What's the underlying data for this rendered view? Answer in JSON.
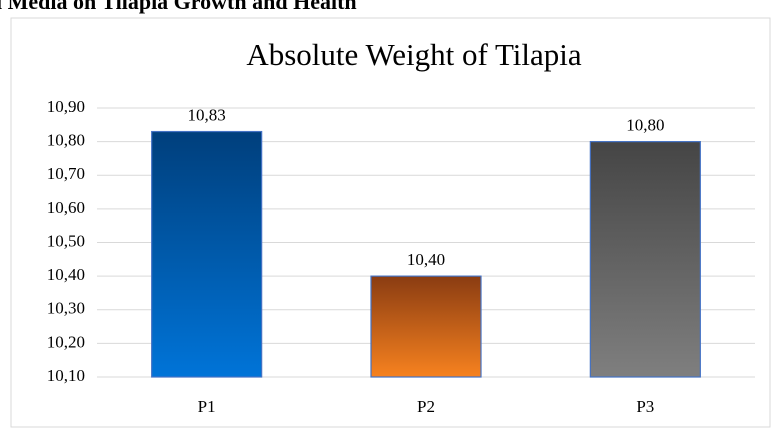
{
  "heading": "l Media on Tilapia Growth and Health",
  "chart_data": {
    "type": "bar",
    "title": "Absolute Weight of Tilapia",
    "categories": [
      "P1",
      "P2",
      "P3"
    ],
    "values": [
      10.83,
      10.4,
      10.8
    ],
    "value_labels": [
      "10,83",
      "10,40",
      "10,80"
    ],
    "colors": [
      [
        "#003f7c",
        "#0074d8"
      ],
      [
        "#8a3c12",
        "#f7821f"
      ],
      [
        "#454545",
        "#7f7f7f"
      ]
    ],
    "ylim": [
      10.1,
      10.9
    ],
    "yticks": [
      {
        "value": 10.1,
        "label": "10,10"
      },
      {
        "value": 10.2,
        "label": "10,20"
      },
      {
        "value": 10.3,
        "label": "10,30"
      },
      {
        "value": 10.4,
        "label": "10,40"
      },
      {
        "value": 10.5,
        "label": "10,50"
      },
      {
        "value": 10.6,
        "label": "10,60"
      },
      {
        "value": 10.7,
        "label": "10,70"
      },
      {
        "value": 10.8,
        "label": "10,80"
      },
      {
        "value": 10.9,
        "label": "10,90"
      }
    ],
    "grid": true
  }
}
